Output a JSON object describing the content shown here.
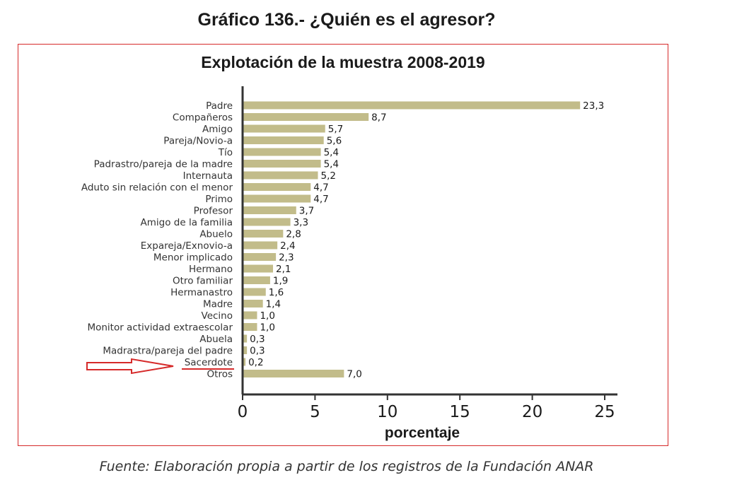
{
  "figure": {
    "title": "Gráfico 136.- ¿Quién es el agresor?",
    "source": "Fuente: Elaboración propia a partir de los registros de la Fundación ANAR"
  },
  "annotation": {
    "highlighted_label": "Sacerdote",
    "arrow_color": "#d62a2a",
    "frame_color": "#d62a2a"
  },
  "colors": {
    "bar": "#c2bc8a",
    "axis": "#333333",
    "text": "#1a1a1a"
  },
  "chart_data": {
    "type": "bar",
    "orientation": "horizontal",
    "title": "Explotación de la muestra 2008-2019",
    "xlabel": "porcentaje",
    "ylabel": "",
    "xlim": [
      0,
      25
    ],
    "xticks": [
      0,
      5,
      10,
      15,
      20,
      25
    ],
    "xtick_labels": [
      "0",
      "5",
      "10",
      "15",
      "20",
      "25"
    ],
    "categories": [
      "Padre",
      "Compañeros",
      "Amigo",
      "Pareja/Novio-a",
      "Tío",
      "Padrastro/pareja de la madre",
      "Internauta",
      "Aduto sin relación con el menor",
      "Primo",
      "Profesor",
      "Amigo de la familia",
      "Abuelo",
      "Expareja/Exnovio-a",
      "Menor implicado",
      "Hermano",
      "Otro familiar",
      "Hermanastro",
      "Madre",
      "Vecino",
      "Monitor actividad extraescolar",
      "Abuela",
      "Madrastra/pareja del padre",
      "Sacerdote",
      "Otros"
    ],
    "values": [
      23.3,
      8.7,
      5.7,
      5.6,
      5.4,
      5.4,
      5.2,
      4.7,
      4.7,
      3.7,
      3.3,
      2.8,
      2.4,
      2.3,
      2.1,
      1.9,
      1.6,
      1.4,
      1.0,
      1.0,
      0.3,
      0.3,
      0.2,
      7.0
    ],
    "value_labels": [
      "23,3",
      "8,7",
      "5,7",
      "5,6",
      "5,4",
      "5,4",
      "5,2",
      "4,7",
      "4,7",
      "3,7",
      "3,3",
      "2,8",
      "2,4",
      "2,3",
      "2,1",
      "1,9",
      "1,6",
      "1,4",
      "1,0",
      "1,0",
      "0,3",
      "0,3",
      "0,2",
      "7,0"
    ],
    "grid": false,
    "legend": "none"
  }
}
